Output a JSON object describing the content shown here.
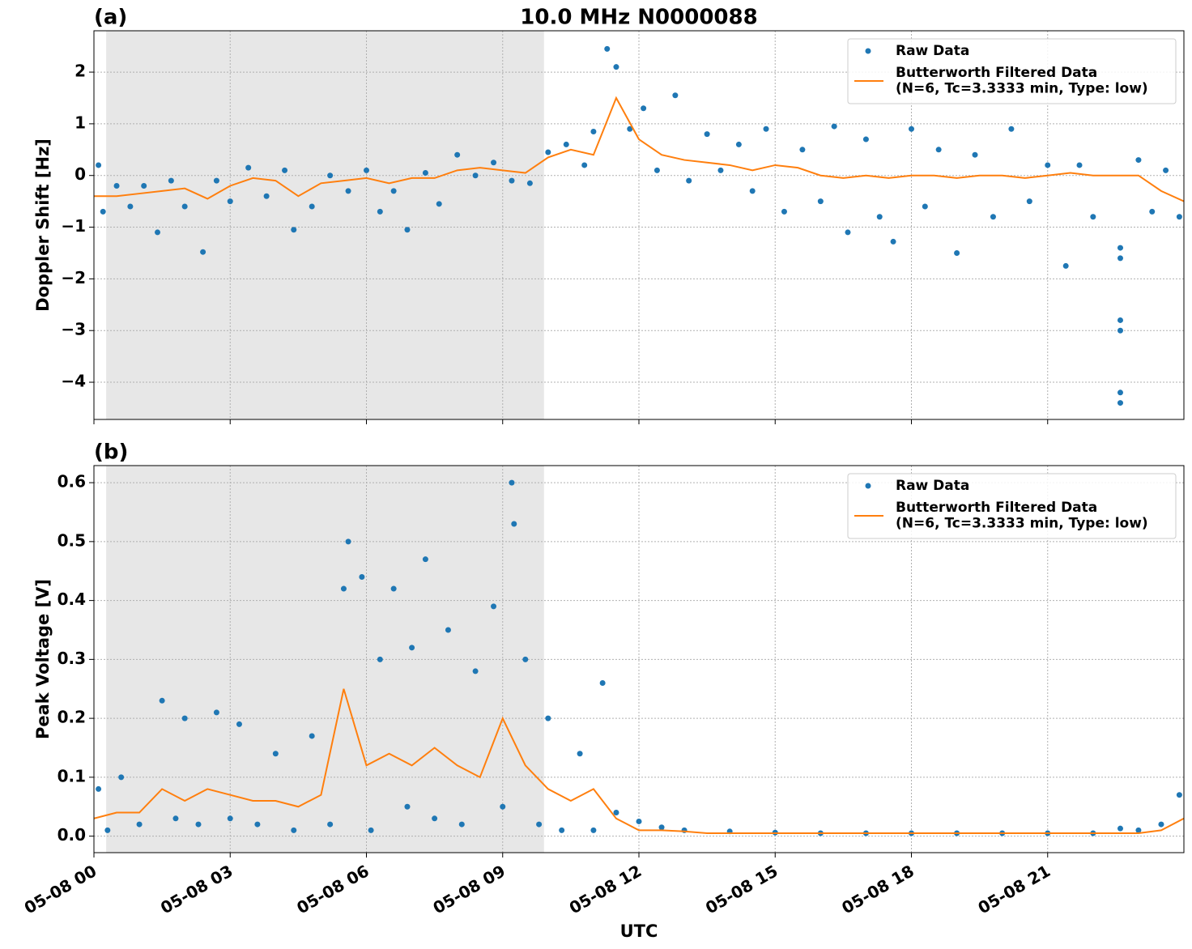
{
  "chart_data": [
    {
      "type": "line",
      "panel_label": "(a)",
      "title": "10.0 MHz N0000088",
      "y_label": "Doppler Shift [Hz]",
      "xlim": [
        0,
        24
      ],
      "xticks": [
        0,
        3,
        6,
        9,
        12,
        15,
        18,
        21
      ],
      "ylim": [
        -4.72,
        2.8
      ],
      "yticks": [
        {
          "value": -4,
          "label": "−4"
        },
        {
          "value": -3,
          "label": "−3"
        },
        {
          "value": -2,
          "label": "−2"
        },
        {
          "value": -1,
          "label": "−1"
        },
        0,
        1,
        2
      ],
      "grid": true,
      "shaded_span": [
        0.27,
        9.91
      ],
      "legend": "upper right",
      "series": [
        {
          "name": "Raw Data",
          "mode": "markers",
          "color": "#1f77b4",
          "x": [
            0.1,
            0.2,
            0.5,
            0.8,
            1.1,
            1.4,
            1.7,
            2.0,
            2.4,
            2.7,
            3.0,
            3.4,
            3.8,
            4.2,
            4.4,
            4.8,
            5.2,
            5.6,
            6.0,
            6.3,
            6.6,
            6.9,
            7.3,
            7.6,
            8.0,
            8.4,
            8.8,
            9.2,
            9.6,
            10.0,
            10.4,
            10.8,
            11.0,
            11.3,
            11.5,
            11.8,
            12.1,
            12.4,
            12.8,
            13.1,
            13.5,
            13.8,
            14.2,
            14.5,
            14.8,
            15.2,
            15.6,
            16.0,
            16.3,
            16.6,
            17.0,
            17.3,
            17.6,
            18.0,
            18.3,
            18.6,
            19.0,
            19.4,
            19.8,
            20.2,
            20.6,
            21.0,
            21.4,
            21.7,
            22.0,
            22.6,
            22.6,
            22.6,
            22.6,
            22.6,
            22.6,
            23.0,
            23.3,
            23.6,
            23.9
          ],
          "values": [
            0.2,
            -0.7,
            -0.2,
            -0.6,
            -0.2,
            -1.1,
            -0.1,
            -0.6,
            -1.48,
            -0.1,
            -0.5,
            0.15,
            -0.4,
            0.1,
            -1.05,
            -0.6,
            0.0,
            -0.3,
            0.1,
            -0.7,
            -0.3,
            -1.05,
            0.05,
            -0.55,
            0.4,
            0.0,
            0.25,
            -0.1,
            -0.15,
            0.45,
            0.6,
            0.2,
            0.85,
            2.45,
            2.1,
            0.9,
            1.3,
            0.1,
            1.55,
            -0.1,
            0.8,
            0.1,
            0.6,
            -0.3,
            0.9,
            -0.7,
            0.5,
            -0.5,
            0.95,
            -1.1,
            0.7,
            -0.8,
            -1.28,
            0.9,
            -0.6,
            0.5,
            -1.5,
            0.4,
            -0.8,
            0.9,
            -0.5,
            0.2,
            -1.75,
            0.2,
            -0.8,
            -1.4,
            -1.6,
            -2.8,
            -3.0,
            -4.2,
            -4.4,
            0.3,
            -0.7,
            0.1,
            -0.8
          ]
        },
        {
          "name": "Butterworth Filtered Data\n(N=6, Tc=3.3333 min, Type: low)",
          "mode": "line",
          "color": "#ff7f0e",
          "x": [
            0,
            0.5,
            1,
            1.5,
            2,
            2.5,
            3,
            3.5,
            4,
            4.5,
            5,
            5.5,
            6,
            6.5,
            7,
            7.5,
            8,
            8.5,
            9,
            9.5,
            10,
            10.5,
            11,
            11.5,
            12,
            12.5,
            13,
            13.5,
            14,
            14.5,
            15,
            15.5,
            16,
            16.5,
            17,
            17.5,
            18,
            18.5,
            19,
            19.5,
            20,
            20.5,
            21,
            21.5,
            22,
            22.5,
            23,
            23.5,
            24
          ],
          "values": [
            -0.4,
            -0.4,
            -0.35,
            -0.3,
            -0.25,
            -0.45,
            -0.2,
            -0.05,
            -0.1,
            -0.4,
            -0.15,
            -0.1,
            -0.05,
            -0.15,
            -0.05,
            -0.05,
            0.1,
            0.15,
            0.1,
            0.05,
            0.35,
            0.5,
            0.4,
            1.5,
            0.7,
            0.4,
            0.3,
            0.25,
            0.2,
            0.1,
            0.2,
            0.15,
            0.0,
            -0.05,
            0.0,
            -0.05,
            0.0,
            0.0,
            -0.05,
            0.0,
            0.0,
            -0.05,
            0.0,
            0.05,
            0.0,
            0.0,
            0.0,
            -0.3,
            -0.5
          ]
        }
      ]
    },
    {
      "type": "line",
      "panel_label": "(b)",
      "y_label": "Peak Voltage [V]",
      "x_label": "UTC",
      "xlim": [
        0,
        24
      ],
      "xticks": [
        {
          "value": 0,
          "label": "05-08 00"
        },
        {
          "value": 3,
          "label": "05-08 03"
        },
        {
          "value": 6,
          "label": "05-08 06"
        },
        {
          "value": 9,
          "label": "05-08 09"
        },
        {
          "value": 12,
          "label": "05-08 12"
        },
        {
          "value": 15,
          "label": "05-08 15"
        },
        {
          "value": 18,
          "label": "05-08 18"
        },
        {
          "value": 21,
          "label": "05-08 21"
        }
      ],
      "ylim": [
        -0.028,
        0.629
      ],
      "yticks": [
        {
          "value": 0,
          "label": "0.0"
        },
        0.1,
        0.2,
        0.3,
        0.4,
        0.5,
        0.6
      ],
      "grid": true,
      "shaded_span": [
        0.27,
        9.91
      ],
      "legend": "upper right",
      "series": [
        {
          "name": "Raw Data",
          "mode": "markers",
          "color": "#1f77b4",
          "x": [
            0.1,
            0.3,
            0.6,
            1.0,
            1.5,
            1.8,
            2.0,
            2.3,
            2.7,
            3.0,
            3.2,
            3.6,
            4.0,
            4.4,
            4.8,
            5.2,
            5.5,
            5.6,
            5.9,
            6.1,
            6.3,
            6.6,
            6.9,
            7.0,
            7.3,
            7.5,
            7.8,
            8.1,
            8.4,
            8.8,
            9.0,
            9.2,
            9.25,
            9.5,
            9.8,
            10.0,
            10.3,
            10.7,
            11.0,
            11.2,
            11.5,
            12.0,
            12.5,
            13,
            14,
            15,
            16,
            17,
            18,
            19,
            20,
            21,
            22,
            22.6,
            23,
            23.5,
            23.9
          ],
          "values": [
            0.08,
            0.01,
            0.1,
            0.02,
            0.23,
            0.03,
            0.2,
            0.02,
            0.21,
            0.03,
            0.19,
            0.02,
            0.14,
            0.01,
            0.17,
            0.02,
            0.42,
            0.5,
            0.44,
            0.01,
            0.3,
            0.42,
            0.05,
            0.32,
            0.47,
            0.03,
            0.35,
            0.02,
            0.28,
            0.39,
            0.05,
            0.6,
            0.53,
            0.3,
            0.02,
            0.2,
            0.01,
            0.14,
            0.01,
            0.26,
            0.04,
            0.025,
            0.015,
            0.01,
            0.008,
            0.006,
            0.005,
            0.005,
            0.005,
            0.005,
            0.005,
            0.005,
            0.005,
            0.013,
            0.01,
            0.02,
            0.07
          ]
        },
        {
          "name": "Butterworth Filtered Data\n(N=6, Tc=3.3333 min, Type: low)",
          "mode": "line",
          "color": "#ff7f0e",
          "x": [
            0,
            0.5,
            1,
            1.5,
            2,
            2.5,
            3,
            3.5,
            4,
            4.5,
            5,
            5.5,
            6,
            6.5,
            7,
            7.5,
            8,
            8.5,
            9,
            9.5,
            10,
            10.5,
            11,
            11.5,
            12,
            12.5,
            13,
            13.5,
            14,
            14.5,
            15,
            15.5,
            16,
            16.5,
            17,
            17.5,
            18,
            18.5,
            19,
            19.5,
            20,
            20.5,
            21,
            21.5,
            22,
            22.5,
            23,
            23.5,
            24
          ],
          "values": [
            0.03,
            0.04,
            0.04,
            0.08,
            0.06,
            0.08,
            0.07,
            0.06,
            0.06,
            0.05,
            0.07,
            0.25,
            0.12,
            0.14,
            0.12,
            0.15,
            0.12,
            0.1,
            0.2,
            0.12,
            0.08,
            0.06,
            0.08,
            0.03,
            0.01,
            0.01,
            0.008,
            0.005,
            0.005,
            0.005,
            0.005,
            0.005,
            0.005,
            0.005,
            0.005,
            0.005,
            0.005,
            0.005,
            0.005,
            0.005,
            0.005,
            0.005,
            0.005,
            0.005,
            0.005,
            0.005,
            0.005,
            0.01,
            0.03
          ]
        }
      ]
    }
  ]
}
